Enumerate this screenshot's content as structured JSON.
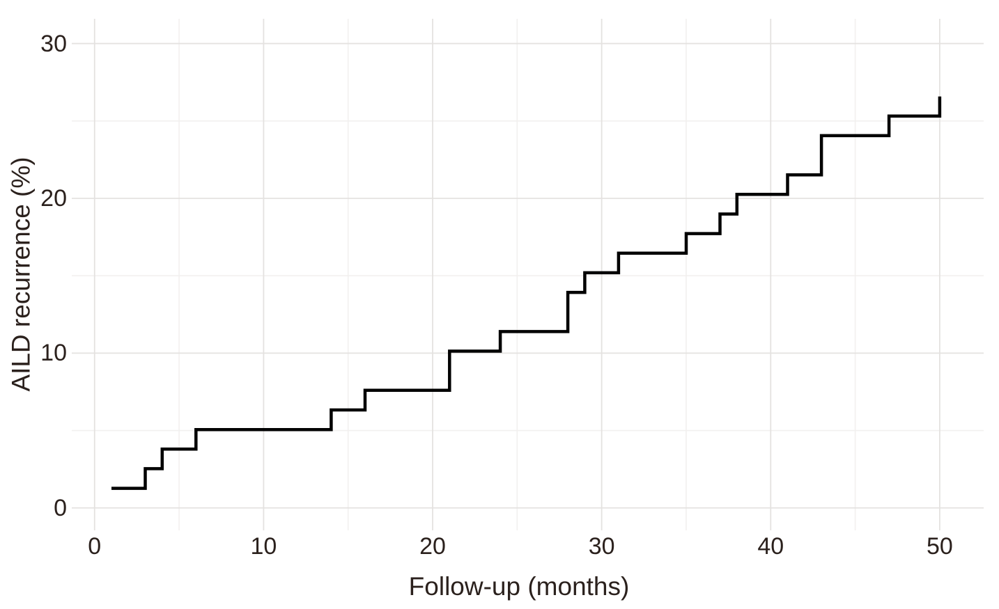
{
  "colors": {
    "background": "#ffffff",
    "text": "#2b211d",
    "curve": "#000000",
    "grid_major": "#e4e2e0",
    "grid_minor": "#f2f0ef"
  },
  "chart_data": {
    "type": "line",
    "subtype": "step-post",
    "title": "",
    "xlabel": "Follow-up (months)",
    "ylabel": "AILD recurrence (%)",
    "xlim": [
      -1.35,
      52.6
    ],
    "ylim": [
      -1.45,
      31.6
    ],
    "x_ticks_major": [
      0,
      10,
      20,
      30,
      40,
      50
    ],
    "x_ticks_minor": [
      5,
      15,
      25,
      35,
      45
    ],
    "y_ticks_major": [
      0,
      10,
      20,
      30
    ],
    "y_ticks_minor": [
      5,
      15,
      25
    ],
    "grid": "major and minor gridlines, no axis lines, white background",
    "legend_position": "none",
    "series": [
      {
        "name": "AILD recurrence",
        "color": "#000000",
        "line_width": 4.5,
        "points": [
          [
            1,
            1.266
          ],
          [
            3,
            2.532
          ],
          [
            4,
            3.797
          ],
          [
            6,
            5.063
          ],
          [
            14,
            6.329
          ],
          [
            16,
            7.595
          ],
          [
            21,
            10.127
          ],
          [
            24,
            11.392
          ],
          [
            28,
            13.924
          ],
          [
            29,
            15.19
          ],
          [
            31,
            16.456
          ],
          [
            35,
            17.722
          ],
          [
            37,
            18.987
          ],
          [
            38,
            20.253
          ],
          [
            41,
            21.519
          ],
          [
            43,
            24.051
          ],
          [
            47,
            25.316
          ],
          [
            50,
            26.582
          ]
        ]
      }
    ]
  }
}
